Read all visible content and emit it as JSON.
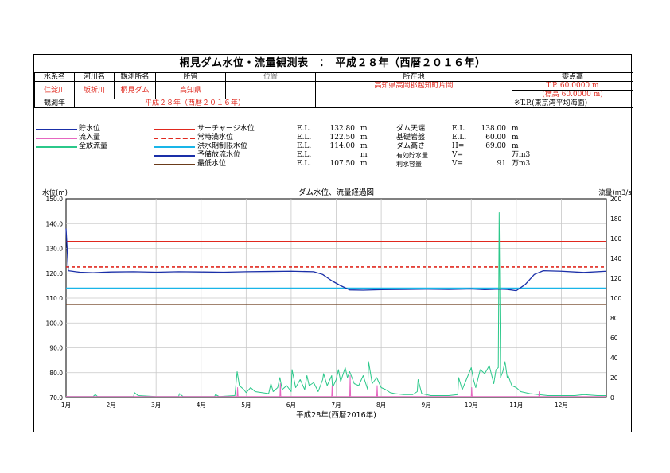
{
  "title": "桐見ダム水位・流量観測表　：　平成２８年（西暦２０１６年）",
  "header": {
    "labels": {
      "water_system": "水系名",
      "river": "河川名",
      "station": "観測所名",
      "jurisdiction": "所管",
      "location_no": "位置",
      "address": "所在地",
      "zero_elevation": "零点高",
      "year": "観測年"
    },
    "values": {
      "water_system": "仁淀川",
      "river": "坂折川",
      "station": "桐見ダム",
      "jurisdiction": "高知県",
      "address": "高知県高岡郡越知町片岡",
      "tp_line1": "T.P.   60.0000  m",
      "tp_line2": "(標高  60.0000  m)",
      "year": "平成２８年（西暦２０１６年）",
      "tp_note": "※T.P.(東京湾平均海面)"
    }
  },
  "legend": {
    "left": [
      {
        "label": "貯水位",
        "color": "#1a2fa8",
        "style": "solid"
      },
      {
        "label": "流入量",
        "color": "#e666c0",
        "style": "solid"
      },
      {
        "label": "全放流量",
        "color": "#2bc88a",
        "style": "solid"
      }
    ],
    "mid": [
      {
        "label": "サーチャージ水位",
        "color": "#e0281e",
        "style": "solid",
        "el": "E.L.",
        "val": "132.80",
        "unit": "m"
      },
      {
        "label": "常時満水位",
        "color": "#e0281e",
        "style": "dashed",
        "el": "E.L.",
        "val": "122.50",
        "unit": "m"
      },
      {
        "label": "洪水期制限水位",
        "color": "#19b5e8",
        "style": "solid",
        "el": "E.L.",
        "val": "114.00",
        "unit": "m"
      },
      {
        "label": "予備放流水位",
        "color": "#1a2fa8",
        "style": "solid",
        "el": "E.L.",
        "val": "",
        "unit": "m"
      },
      {
        "label": "最低水位",
        "color": "#6b3b1a",
        "style": "solid",
        "el": "E.L.",
        "val": "107.50",
        "unit": "m"
      }
    ],
    "right": [
      {
        "label": "ダム天端",
        "el": "E.L.",
        "val": "138.00",
        "unit": "m"
      },
      {
        "label": "基礎岩盤",
        "el": "E.L.",
        "val": "60.00",
        "unit": "m"
      },
      {
        "label": "ダム高さ",
        "el": "H=",
        "val": "69.00",
        "unit": "m"
      },
      {
        "label": "有効貯水量",
        "el": "V=",
        "val": "",
        "unit": "万m3"
      },
      {
        "label": "利水容量",
        "el": "V=",
        "val": "91",
        "unit": "万m3"
      }
    ]
  },
  "chart_data": {
    "type": "line",
    "title": "ダム水位、流量経過図",
    "ylabel": "水位(m)",
    "y2label": "流量(m3/s)",
    "xlabel": "平成28年(西暦2016年)",
    "ylim": [
      70.0,
      150.0
    ],
    "y2lim": [
      0,
      200
    ],
    "y_ticks": [
      "70.0",
      "80.0",
      "90.0",
      "100.0",
      "110.0",
      "120.0",
      "130.0",
      "140.0",
      "150.0"
    ],
    "y2_ticks": [
      "0",
      "20",
      "40",
      "60",
      "80",
      "100",
      "120",
      "140",
      "160",
      "180",
      "200"
    ],
    "x_ticks": [
      "1月",
      "2月",
      "3月",
      "4月",
      "5月",
      "6月",
      "7月",
      "8月",
      "9月",
      "10月",
      "11月",
      "12月"
    ],
    "grid": true,
    "reference_lines": [
      {
        "name": "サーチャージ水位",
        "value": 132.8,
        "color": "#e0281e",
        "style": "solid"
      },
      {
        "name": "常時満水位",
        "value": 122.5,
        "color": "#e0281e",
        "style": "dashed"
      },
      {
        "name": "洪水期制限水位",
        "value": 114.0,
        "color": "#19b5e8",
        "style": "solid"
      },
      {
        "name": "最低水位",
        "value": 107.5,
        "color": "#6b3b1a",
        "style": "solid"
      }
    ],
    "water_level": {
      "name": "貯水位",
      "color": "#1a2fa8",
      "axis": "left",
      "x_month": [
        0,
        0.05,
        0.3,
        0.6,
        1,
        1.5,
        2,
        2.5,
        3,
        3.5,
        4,
        4.5,
        5,
        5.5,
        5.7,
        5.9,
        6.1,
        6.3,
        6.6,
        7,
        7.5,
        8,
        8.5,
        9,
        9.3,
        9.6,
        9.8,
        10.0,
        10.2,
        10.4,
        10.6,
        11,
        11.5,
        12
      ],
      "values": [
        138.0,
        121.0,
        120.4,
        120.2,
        120.5,
        120.6,
        120.4,
        120.6,
        120.5,
        120.4,
        120.6,
        120.7,
        120.8,
        120.6,
        119.5,
        117.0,
        115.0,
        113.3,
        113.2,
        113.4,
        113.5,
        113.6,
        113.5,
        113.7,
        113.4,
        113.6,
        113.5,
        113.0,
        115.5,
        119.5,
        121.0,
        120.8,
        120.3,
        120.8
      ]
    },
    "outflow": {
      "name": "全放流量",
      "color": "#2bc88a",
      "axis": "right",
      "x_month": [
        0,
        0.6,
        0.65,
        0.7,
        1.0,
        1.5,
        1.52,
        1.6,
        2.0,
        2.5,
        2.52,
        2.6,
        3.0,
        3.3,
        3.32,
        3.4,
        3.75,
        3.8,
        3.85,
        3.95,
        4.0,
        4.1,
        4.2,
        4.5,
        4.55,
        4.6,
        4.7,
        4.75,
        4.8,
        4.9,
        5.0,
        5.02,
        5.1,
        5.2,
        5.3,
        5.35,
        5.4,
        5.5,
        5.6,
        5.7,
        5.72,
        5.8,
        5.9,
        5.92,
        6.0,
        6.05,
        6.1,
        6.2,
        6.25,
        6.3,
        6.4,
        6.5,
        6.6,
        6.7,
        6.72,
        6.8,
        6.9,
        7.0,
        7.1,
        7.2,
        7.3,
        7.5,
        7.7,
        7.8,
        7.82,
        7.9,
        8.0,
        8.1,
        8.2,
        8.3,
        8.5,
        8.7,
        8.72,
        8.8,
        9.0,
        9.05,
        9.1,
        9.2,
        9.3,
        9.4,
        9.5,
        9.55,
        9.6,
        9.62,
        9.65,
        9.7,
        9.75,
        9.8,
        9.82,
        9.9,
        10.0,
        10.1,
        10.3,
        10.5,
        10.7,
        11.0,
        11.3,
        11.5,
        11.8,
        12.0
      ],
      "values": [
        1,
        1,
        3,
        1,
        1,
        1,
        5,
        2,
        1,
        1,
        4,
        1,
        1,
        1,
        3,
        1,
        2,
        26,
        12,
        8,
        5,
        10,
        6,
        4,
        14,
        6,
        10,
        20,
        8,
        12,
        6,
        28,
        10,
        18,
        8,
        22,
        12,
        15,
        6,
        18,
        24,
        12,
        22,
        10,
        18,
        28,
        16,
        30,
        20,
        26,
        14,
        12,
        22,
        8,
        36,
        14,
        20,
        10,
        8,
        5,
        4,
        3,
        3,
        6,
        18,
        4,
        3,
        2,
        2,
        2,
        2,
        3,
        20,
        8,
        30,
        18,
        10,
        28,
        24,
        32,
        14,
        28,
        30,
        186,
        20,
        26,
        36,
        20,
        22,
        12,
        10,
        6,
        4,
        3,
        2,
        2,
        2,
        3,
        2,
        2
      ]
    },
    "inflow": {
      "name": "流入量",
      "color": "#e666c0",
      "axis": "right",
      "x_month": [
        0,
        3.8,
        3.81,
        3.82,
        4.75,
        4.76,
        4.77,
        5.9,
        5.91,
        5.92,
        6.3,
        6.31,
        6.32,
        6.9,
        6.91,
        6.92,
        9.0,
        9.01,
        9.02,
        10.5,
        10.51,
        10.52,
        12.0
      ],
      "values": [
        1,
        1,
        10,
        1,
        1,
        14,
        1,
        1,
        12,
        1,
        1,
        22,
        1,
        1,
        12,
        1,
        1,
        10,
        1,
        1,
        6,
        1,
        1
      ]
    }
  }
}
